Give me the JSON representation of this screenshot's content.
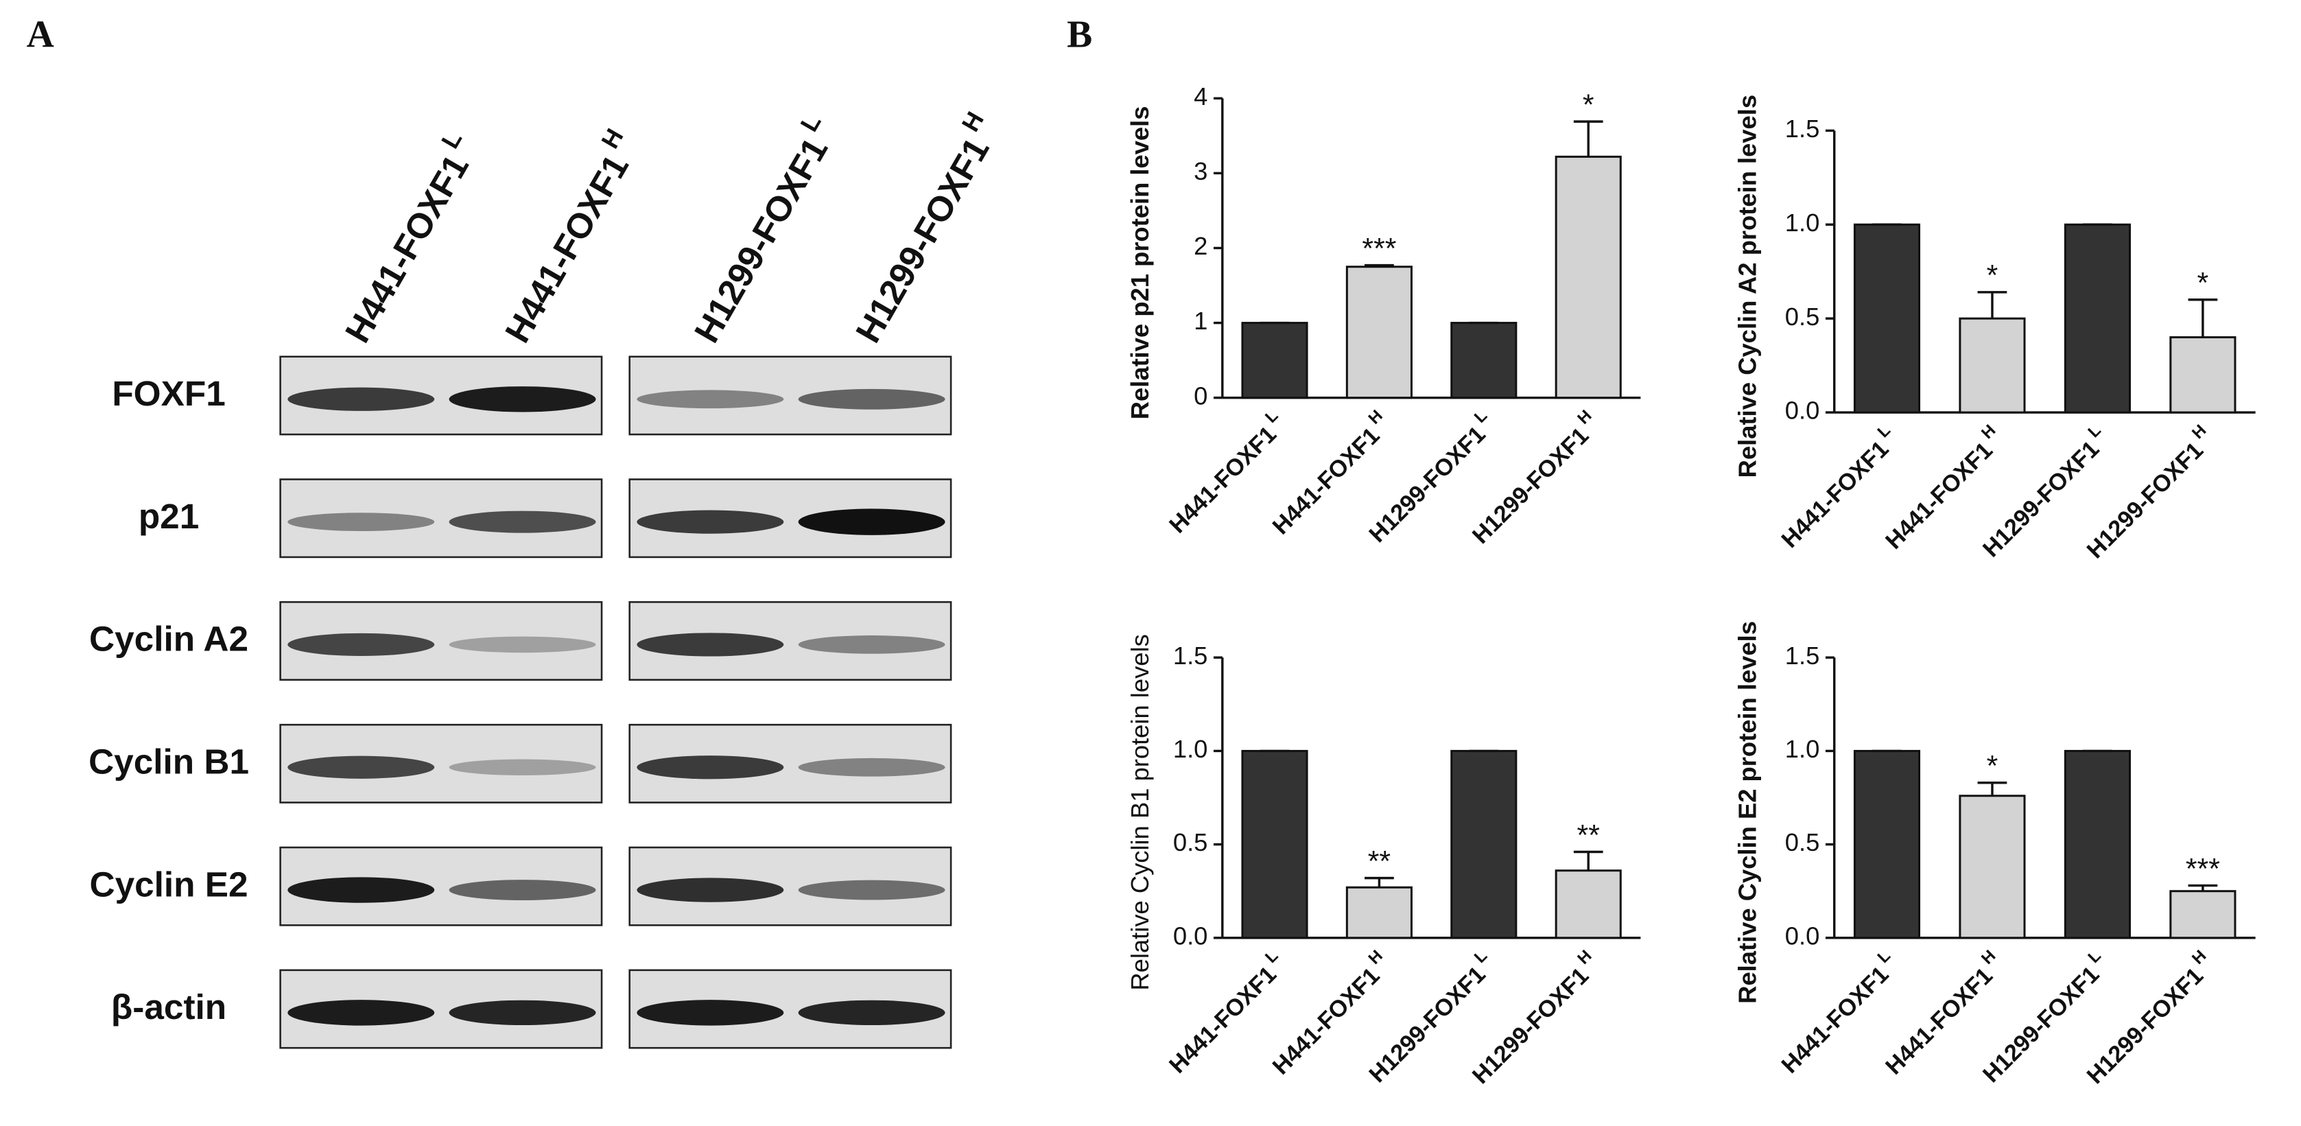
{
  "panel_a": {
    "label": "A",
    "lanes": [
      {
        "name": "H441-FOXF1",
        "superscript": "L"
      },
      {
        "name": "H441-FOXF1",
        "superscript": "H"
      },
      {
        "name": "H1299-FOXF1",
        "superscript": "L"
      },
      {
        "name": "H1299-FOXF1",
        "superscript": "H"
      }
    ],
    "proteins": [
      "FOXF1",
      "p21",
      "Cyclin A2",
      "Cyclin B1",
      "Cyclin E2",
      "β-actin"
    ]
  },
  "panel_b_label": "B",
  "chart_data": [
    {
      "type": "bar",
      "ylabel": "Relative p21 protein levels",
      "categories": [
        "H441-FOXF1",
        "H441-FOXF1",
        "H1299-FOXF1",
        "H1299-FOXF1"
      ],
      "category_superscripts": [
        "L",
        "H",
        "L",
        "H"
      ],
      "values": [
        1,
        1.75,
        1,
        3.22
      ],
      "errors": [
        0,
        0.02,
        0,
        0.47
      ],
      "significance": [
        null,
        "***",
        null,
        "*"
      ],
      "colors": [
        "#333333",
        "#d3d3d3",
        "#333333",
        "#d3d3d3"
      ],
      "ylim": [
        0,
        4
      ],
      "yticks": [
        0,
        1,
        2,
        3,
        4
      ]
    },
    {
      "type": "bar",
      "ylabel": "Relative Cyclin A2 protein levels",
      "categories": [
        "H441-FOXF1",
        "H441-FOXF1",
        "H1299-FOXF1",
        "H1299-FOXF1"
      ],
      "category_superscripts": [
        "L",
        "H",
        "L",
        "H"
      ],
      "values": [
        1,
        0.5,
        1,
        0.4
      ],
      "errors": [
        0,
        0.14,
        0,
        0.2
      ],
      "significance": [
        null,
        "*",
        null,
        "*"
      ],
      "colors": [
        "#333333",
        "#d3d3d3",
        "#333333",
        "#d3d3d3"
      ],
      "ylim": [
        0,
        1.5
      ],
      "yticks": [
        {
          "value": 0,
          "label": "0.0"
        },
        0.5,
        {
          "value": 1,
          "label": "1.0"
        },
        1.5
      ]
    },
    {
      "type": "bar",
      "ylabel": "Relative Cyclin B1 protein levels",
      "categories": [
        "H441-FOXF1",
        "H441-FOXF1",
        "H1299-FOXF1",
        "H1299-FOXF1"
      ],
      "category_superscripts": [
        "L",
        "H",
        "L",
        "H"
      ],
      "values": [
        1,
        0.27,
        1,
        0.36
      ],
      "errors": [
        0,
        0.05,
        0,
        0.1
      ],
      "significance": [
        null,
        "**",
        null,
        "**"
      ],
      "colors": [
        "#333333",
        "#d3d3d3",
        "#333333",
        "#d3d3d3"
      ],
      "ylim": [
        0,
        1.5
      ],
      "yticks": [
        {
          "value": 0,
          "label": "0.0"
        },
        0.5,
        {
          "value": 1,
          "label": "1.0"
        },
        1.5
      ]
    },
    {
      "type": "bar",
      "ylabel": "Relative Cyclin E2 protein levels",
      "categories": [
        "H441-FOXF1",
        "H441-FOXF1",
        "H1299-FOXF1",
        "H1299-FOXF1"
      ],
      "category_superscripts": [
        "L",
        "H",
        "L",
        "H"
      ],
      "values": [
        1,
        0.76,
        1,
        0.25
      ],
      "errors": [
        0,
        0.07,
        0,
        0.03
      ],
      "significance": [
        null,
        "*",
        null,
        "***"
      ],
      "colors": [
        "#333333",
        "#d3d3d3",
        "#333333",
        "#d3d3d3"
      ],
      "ylim": [
        0,
        1.5
      ],
      "yticks": [
        {
          "value": 0,
          "label": "0.0"
        },
        0.5,
        {
          "value": 1,
          "label": "1.0"
        },
        1.5
      ]
    }
  ]
}
